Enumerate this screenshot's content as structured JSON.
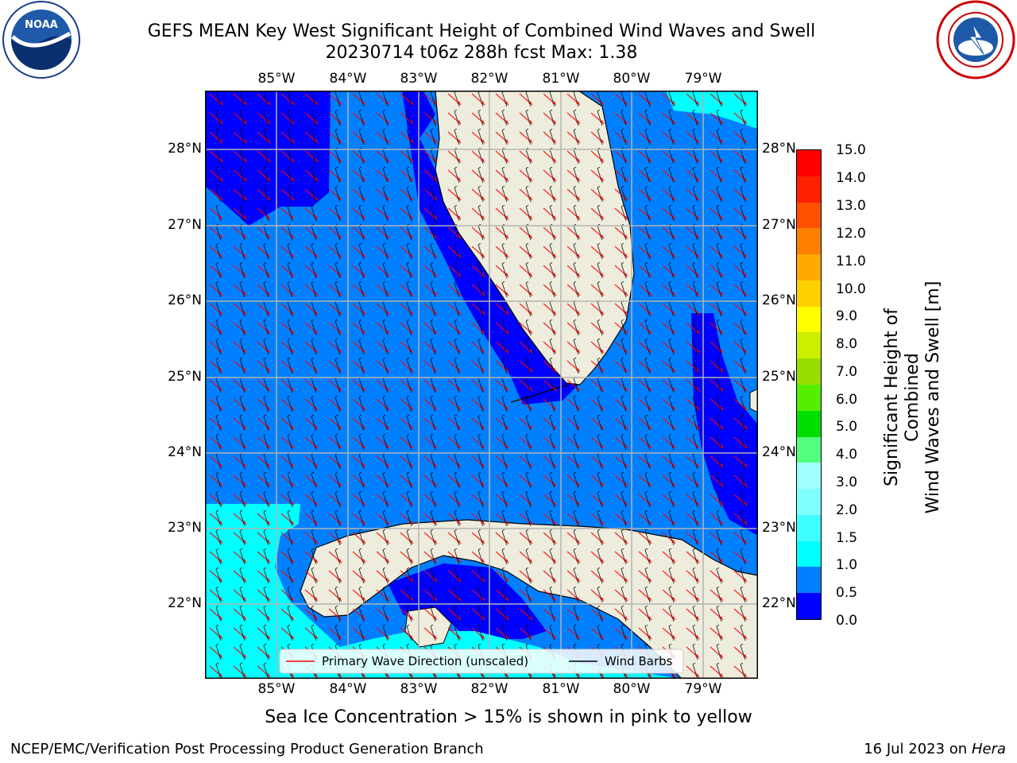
{
  "title": {
    "line1": "GEFS MEAN Key West Significant Height of Combined Wind Waves and Swell",
    "line2": "20230714 t06z 288h fcst   Max: 1.38"
  },
  "logos": {
    "left": {
      "text": "NOAA",
      "ring_text": "NATIONAL OCEANIC AND ATMOSPHERIC ADMINISTRATION · U.S. DEPARTMENT OF COMMERCE"
    },
    "right": {
      "ring_text": "NATIONAL WEATHER SERVICE"
    }
  },
  "map": {
    "lon_ticks": [
      "85°W",
      "84°W",
      "83°W",
      "82°W",
      "81°W",
      "80°W",
      "79°W"
    ],
    "lat_ticks": [
      "28°N",
      "27°N",
      "26°N",
      "25°N",
      "24°N",
      "23°N",
      "22°N"
    ],
    "colors": {
      "land": "#eeecdc",
      "coast": "#000000",
      "grid": "#b3b3b3",
      "wave_arrow": "#ff0000",
      "barb": "#000000"
    }
  },
  "legend": {
    "wave": "Primary Wave Direction (unscaled)",
    "barb": "Wind Barbs"
  },
  "colorbar": {
    "label_line1": "Significant Height of Combined",
    "label_line2": "Wind Waves and Swell [m]",
    "ticks": [
      "15.0",
      "14.0",
      "13.0",
      "12.0",
      "11.0",
      "10.0",
      "9.0",
      "8.0",
      "7.0",
      "6.0",
      "5.0",
      "4.0",
      "3.0",
      "2.0",
      "1.5",
      "1.0",
      "0.5",
      "0.0"
    ],
    "colors": [
      "#0000ff",
      "#0080ff",
      "#00ffff",
      "#40ffff",
      "#80ffff",
      "#a0ffff",
      "#55ff80",
      "#00dd00",
      "#55ee00",
      "#99dd00",
      "#ccee00",
      "#ffff00",
      "#ffd000",
      "#ffaa00",
      "#ff8000",
      "#ff5000",
      "#ff2000",
      "#ff0000"
    ]
  },
  "note": "Sea Ice Concentration > 15% is shown in pink to yellow",
  "footer": {
    "left": "NCEP/EMC/Verification Post Processing Product Generation Branch",
    "right_date": "16 Jul 2023 on ",
    "right_host": "Hera"
  }
}
